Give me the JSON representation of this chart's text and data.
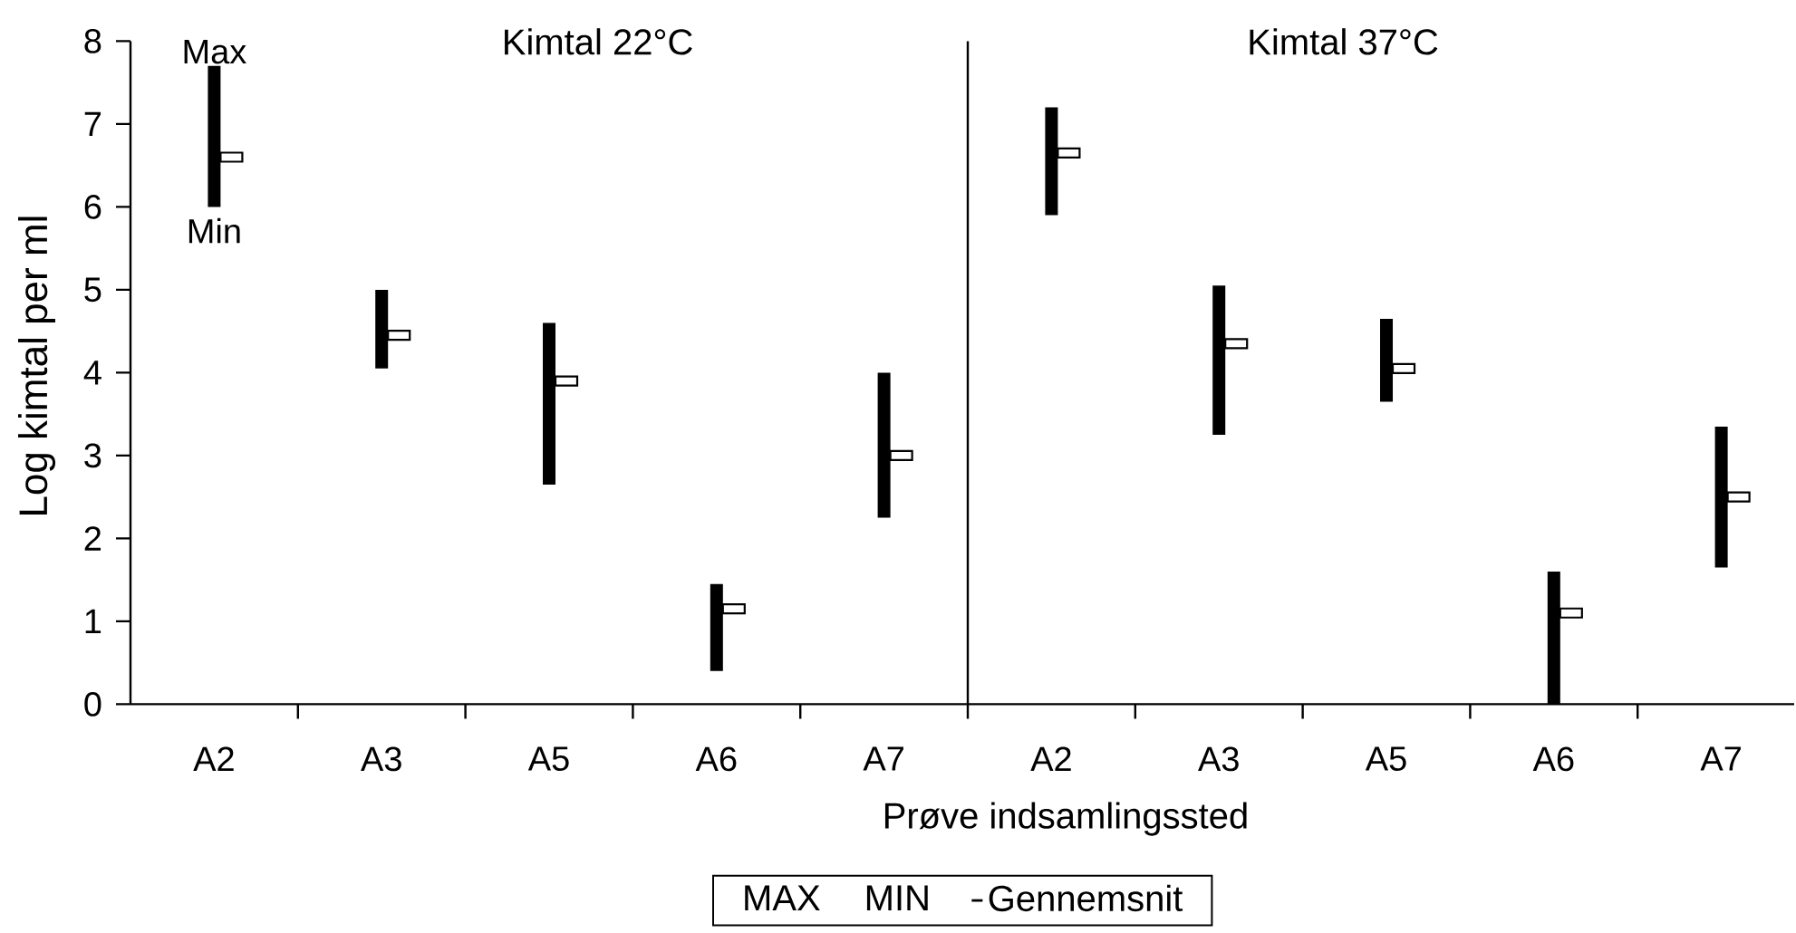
{
  "chart_data": [
    {
      "type": "bar",
      "title": "Kimtal 22°C",
      "ylabel": "Log kimtal per ml",
      "categories": [
        "A2",
        "A3",
        "A5",
        "A6",
        "A7"
      ],
      "series": [
        {
          "color": "#000000",
          "base": [
            6.0,
            4.05,
            2.65,
            0.4,
            2.25
          ],
          "values": [
            1.7,
            0.95,
            1.95,
            1.05,
            1.75
          ]
        },
        {
          "type": "scatter",
          "color": "#000000",
          "marker": "square",
          "x": [
            "A2",
            "A3",
            "A5",
            "A6",
            "A7"
          ],
          "values": [
            6.6,
            4.45,
            3.9,
            1.15,
            3.0
          ]
        }
      ],
      "ylim": [
        0,
        8
      ],
      "yticks": [
        0,
        1,
        2,
        3,
        4,
        5,
        6,
        7,
        8
      ],
      "annotations": [
        {
          "text": "Max",
          "x": "A2",
          "y": 7.7
        },
        {
          "text": "Min",
          "x": "A2",
          "y": 6.0
        }
      ]
    },
    {
      "type": "bar",
      "title": "Kimtal 37°C",
      "xlabel": "Prøve indsamlingssted",
      "categories": [
        "A2",
        "A3",
        "A5",
        "A6",
        "A7"
      ],
      "series": [
        {
          "color": "#000000",
          "base": [
            5.9,
            3.25,
            3.65,
            0,
            1.65
          ],
          "values": [
            1.3,
            1.8,
            1.0,
            1.6,
            1.7
          ]
        },
        {
          "type": "scatter",
          "name": "Gennemsnit",
          "color": "#000000",
          "marker": "square",
          "x": [
            "A2",
            "A3",
            "A5",
            "A6",
            "A7"
          ],
          "values": [
            6.65,
            4.35,
            4.05,
            1.1,
            2.5
          ]
        }
      ],
      "ylim": [
        0,
        8
      ],
      "tick_labels": "x",
      "legend": "bottom",
      "annotations": [
        "MAX",
        "MIN"
      ]
    }
  ]
}
